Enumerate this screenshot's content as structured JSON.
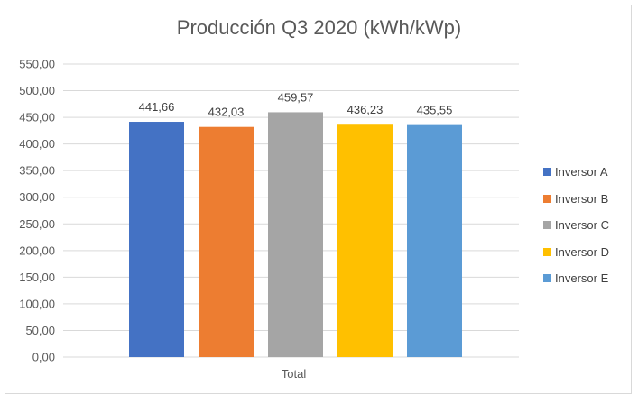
{
  "chart_data": {
    "type": "bar",
    "title": "Producción Q3 2020 (kWh/kWp)",
    "categories": [
      "Total"
    ],
    "series": [
      {
        "name": "Inversor A",
        "values": [
          441.66
        ],
        "label": "441,66",
        "color": "#4472c4"
      },
      {
        "name": "Inversor B",
        "values": [
          432.03
        ],
        "label": "432,03",
        "color": "#ed7d31"
      },
      {
        "name": "Inversor C",
        "values": [
          459.57
        ],
        "label": "459,57",
        "color": "#a5a5a5"
      },
      {
        "name": "Inversor D",
        "values": [
          436.23
        ],
        "label": "436,23",
        "color": "#ffc000"
      },
      {
        "name": "Inversor E",
        "values": [
          435.55
        ],
        "label": "435,55",
        "color": "#5b9bd5"
      }
    ],
    "ylim": [
      0,
      550
    ],
    "yticks": [
      "0,00",
      "50,00",
      "100,00",
      "150,00",
      "200,00",
      "250,00",
      "300,00",
      "350,00",
      "400,00",
      "450,00",
      "500,00",
      "550,00"
    ],
    "xlabel": "",
    "ylabel": "",
    "grid": true,
    "legend_position": "right",
    "gridline_color": "#d9d9d9"
  }
}
